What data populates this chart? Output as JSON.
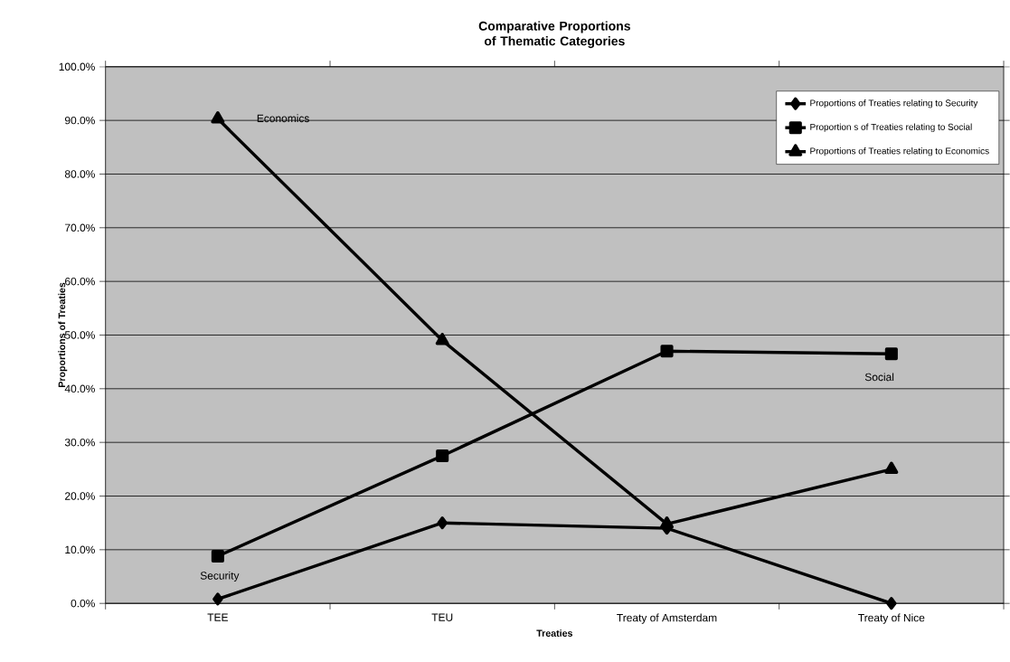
{
  "chart_data": {
    "type": "line",
    "title": "Comparative Proportions of Thematic Categories",
    "xlabel": "Treaties",
    "ylabel": "Proportions of Treaties",
    "categories": [
      "TEE",
      "TEU",
      "Treaty of Amsterdam",
      "Treaty of Nice"
    ],
    "series": [
      {
        "name": "Proportions of Treaties relating to Security",
        "color": "#000000",
        "marker": "diamond",
        "values": [
          0.8,
          15.0,
          14.0,
          0.0
        ]
      },
      {
        "name": "Proportion s of Treaties relating to Social",
        "color": "#000000",
        "marker": "square",
        "values": [
          8.8,
          27.5,
          47.0,
          46.5
        ]
      },
      {
        "name": "Proportions of Treaties relating to Economics",
        "color": "#000000",
        "marker": "triangle",
        "values": [
          90.3,
          49.0,
          14.8,
          25.0
        ]
      }
    ],
    "ylim": [
      0,
      100
    ],
    "yticks": [
      {
        "value": 0,
        "label": "0.0%"
      },
      {
        "value": 10,
        "label": "10.0%"
      },
      {
        "value": 20,
        "label": "20.0%"
      },
      {
        "value": 30,
        "label": "30.0%"
      },
      {
        "value": 40,
        "label": "40.0%"
      },
      {
        "value": 50,
        "label": "50.0%"
      },
      {
        "value": 60,
        "label": "60.0%"
      },
      {
        "value": 70,
        "label": "70.0%"
      },
      {
        "value": 80,
        "label": "80.0%"
      },
      {
        "value": 90,
        "label": "90.0%"
      },
      {
        "value": 100,
        "label": "100.0%"
      }
    ],
    "grid": "y",
    "legend": "top right",
    "line_style": "solid",
    "annotations": [
      "Economics",
      "Social",
      "Security"
    ]
  }
}
